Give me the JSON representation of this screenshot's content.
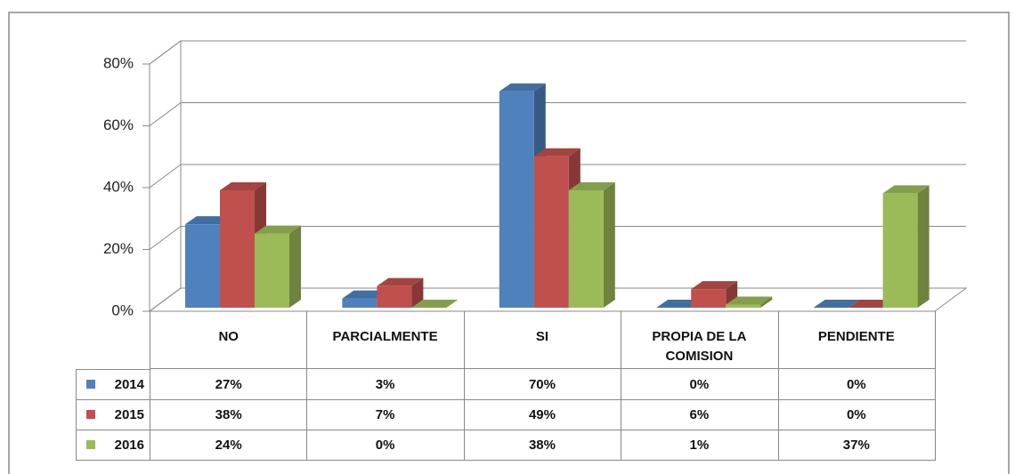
{
  "chart_data": {
    "type": "bar3d",
    "categories": [
      "NO",
      "PARCIALMENTE",
      "SI",
      "PROPIA DE LA COMISION",
      "PENDIENTE"
    ],
    "series": [
      {
        "name": "2014",
        "color": "#4f81bd",
        "values": [
          27,
          3,
          70,
          0,
          0
        ],
        "value_labels": [
          "27%",
          "3%",
          "70%",
          "0%",
          "0%"
        ]
      },
      {
        "name": "2015",
        "color": "#c0504d",
        "values": [
          38,
          7,
          49,
          6,
          0
        ],
        "value_labels": [
          "38%",
          "7%",
          "49%",
          "6%",
          "0%"
        ]
      },
      {
        "name": "2016",
        "color": "#9bbb59",
        "values": [
          24,
          0,
          38,
          1,
          37
        ],
        "value_labels": [
          "24%",
          "0%",
          "38%",
          "1%",
          "37%"
        ]
      }
    ],
    "ylim": [
      0,
      80
    ],
    "yticks": [
      {
        "value": 0,
        "label": "0%"
      },
      {
        "value": 20,
        "label": "20%"
      },
      {
        "value": 40,
        "label": "40%"
      },
      {
        "value": 60,
        "label": "60%"
      },
      {
        "value": 80,
        "label": "80%"
      }
    ],
    "grid": true
  }
}
